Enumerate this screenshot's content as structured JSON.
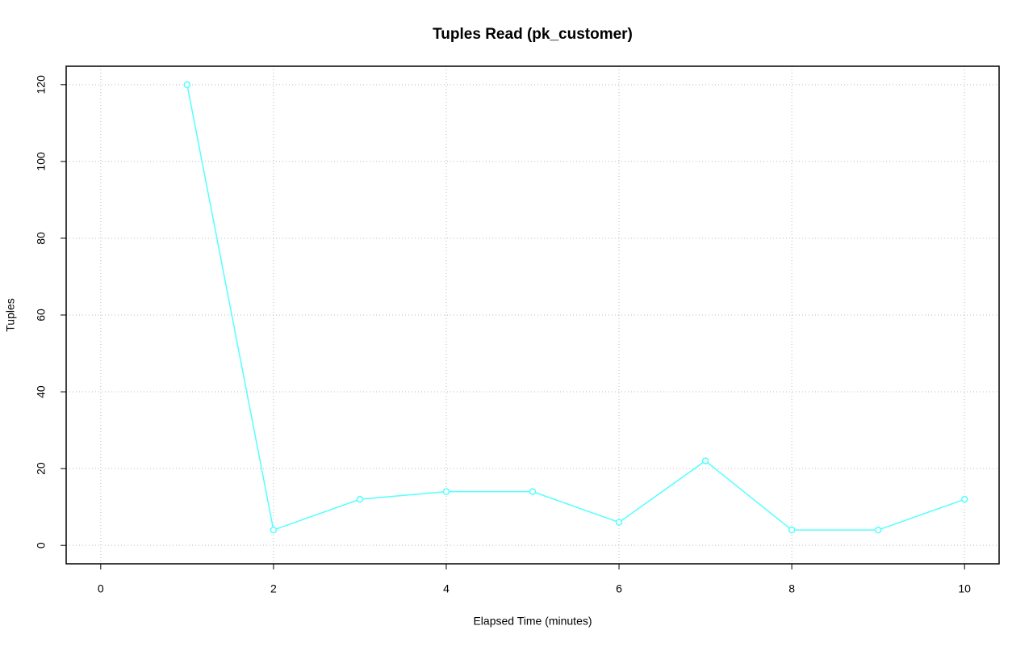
{
  "chart_data": {
    "type": "line",
    "title": "Tuples Read (pk_customer)",
    "x_label": "Elapsed Time (minutes)",
    "y_label": "Tuples",
    "x": [
      1,
      2,
      3,
      4,
      5,
      6,
      7,
      8,
      9,
      10
    ],
    "values": [
      120,
      4,
      12,
      14,
      14,
      6,
      22,
      4,
      4,
      12
    ],
    "color": "#55ffff",
    "xlim": [
      -0.4,
      10.4
    ],
    "ylim": [
      -4.8,
      124.8
    ],
    "xticks": [
      0,
      2,
      4,
      6,
      8,
      10
    ],
    "yticks": [
      0,
      20,
      40,
      60,
      80,
      100,
      120
    ],
    "grid": true
  }
}
